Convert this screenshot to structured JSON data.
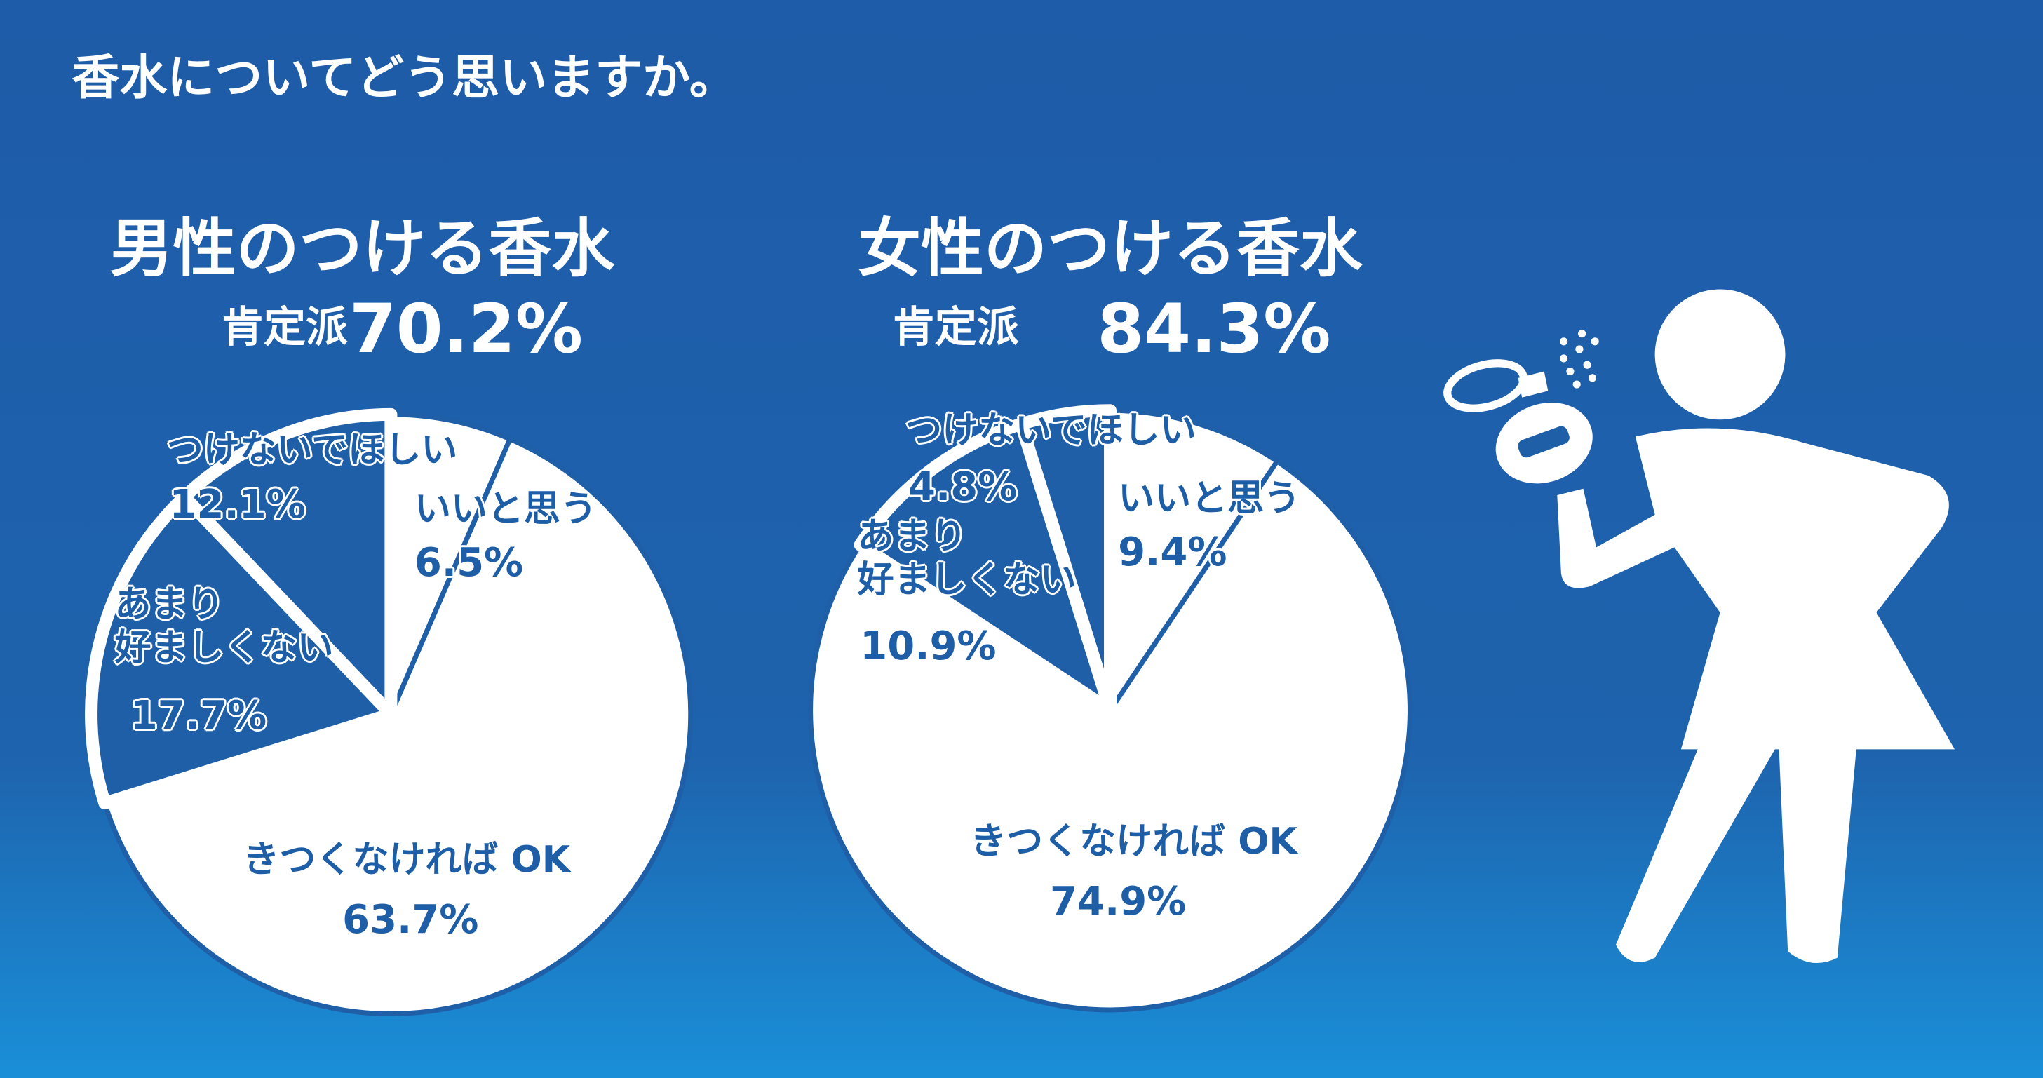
{
  "title": "香水についてどう思いますか。",
  "chart_data": [
    {
      "type": "pie",
      "title": "男性のつける香水",
      "summary": {
        "label": "肯定派",
        "value": 70.2,
        "value_label": "70.2%"
      },
      "categories": [
        "いいと思う",
        "きつくなければ OK",
        "あまり\n好ましくない",
        "つけないでほしい"
      ],
      "values": [
        6.5,
        63.7,
        17.7,
        12.1
      ],
      "value_labels": [
        "6.5%",
        "63.7%",
        "17.7%",
        "12.1%"
      ],
      "colors": [
        "#ffffff",
        "#ffffff",
        "#1e5fa8",
        "#1e5fa8"
      ]
    },
    {
      "type": "pie",
      "title": "女性のつける香水",
      "summary": {
        "label": "肯定派",
        "value": 84.3,
        "value_label": "84.3%"
      },
      "categories": [
        "いいと思う",
        "きつくなければ OK",
        "あまり\n好ましくない",
        "つけないでほしい"
      ],
      "values": [
        9.4,
        74.9,
        10.9,
        4.8
      ],
      "value_labels": [
        "9.4%",
        "74.9%",
        "10.9%",
        "4.8%"
      ],
      "colors": [
        "#ffffff",
        "#ffffff",
        "#1e5fa8",
        "#1e5fa8"
      ]
    }
  ]
}
